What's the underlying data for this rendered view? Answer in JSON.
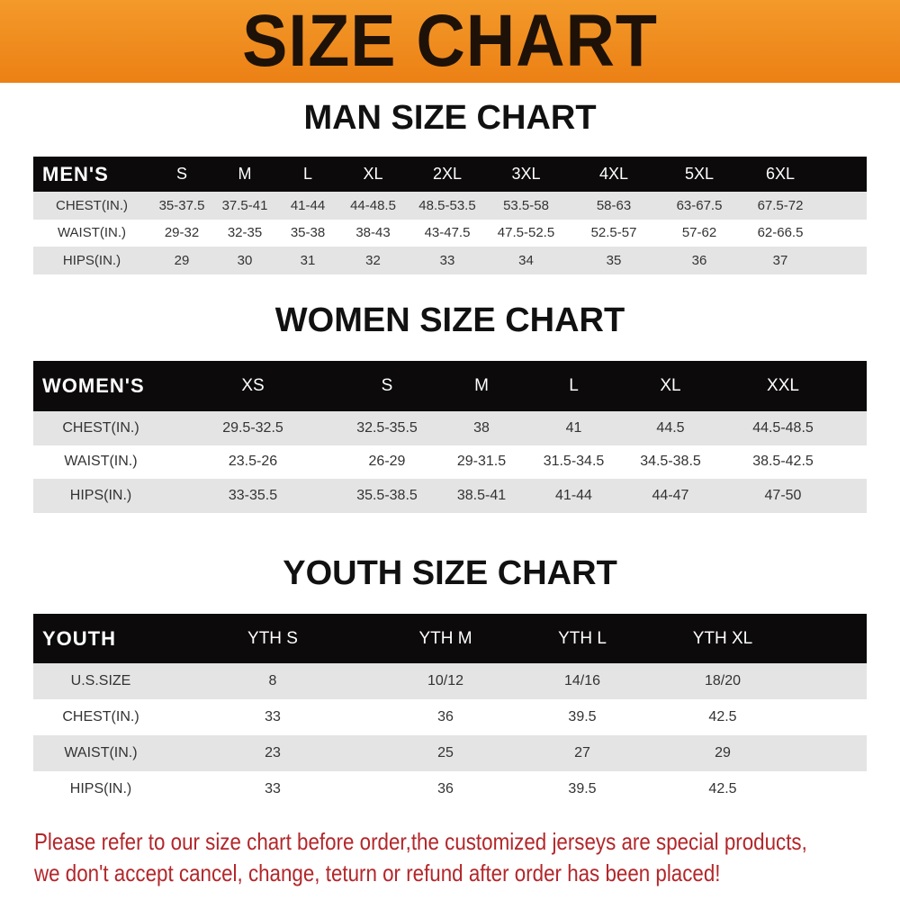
{
  "title": "SIZE CHART",
  "men": {
    "title": "MAN SIZE CHART",
    "headers": [
      "MEN'S",
      "S",
      "M",
      "L",
      "XL",
      "2XL",
      "3XL",
      "4XL",
      "5XL",
      "6XL"
    ],
    "rows": [
      [
        "CHEST(IN.)",
        "35-37.5",
        "37.5-41",
        "41-44",
        "44-48.5",
        "48.5-53.5",
        "53.5-58",
        "58-63",
        "63-67.5",
        "67.5-72"
      ],
      [
        "WAIST(IN.)",
        "29-32",
        "32-35",
        "35-38",
        "38-43",
        "43-47.5",
        "47.5-52.5",
        "52.5-57",
        "57-62",
        "62-66.5"
      ],
      [
        "HIPS(IN.)",
        "29",
        "30",
        "31",
        "32",
        "33",
        "34",
        "35",
        "36",
        "37"
      ]
    ]
  },
  "women": {
    "title": "WOMEN SIZE CHART",
    "headers": [
      "WOMEN'S",
      "XS",
      "S",
      "M",
      "L",
      "XL",
      "XXL"
    ],
    "rows": [
      [
        "CHEST(IN.)",
        "29.5-32.5",
        "32.5-35.5",
        "38",
        "41",
        "44.5",
        "44.5-48.5"
      ],
      [
        "WAIST(IN.)",
        "23.5-26",
        "26-29",
        "29-31.5",
        "31.5-34.5",
        "34.5-38.5",
        "38.5-42.5"
      ],
      [
        "HIPS(IN.)",
        "33-35.5",
        "35.5-38.5",
        "38.5-41",
        "41-44",
        "44-47",
        "47-50"
      ]
    ]
  },
  "youth": {
    "title": "YOUTH SIZE CHART",
    "headers": [
      "YOUTH",
      "YTH S",
      "YTH M",
      "YTH L",
      "YTH XL"
    ],
    "rows": [
      [
        "U.S.SIZE",
        "8",
        "10/12",
        "14/16",
        "18/20"
      ],
      [
        "CHEST(IN.)",
        "33",
        "36",
        "39.5",
        "42.5"
      ],
      [
        "WAIST(IN.)",
        "23",
        "25",
        "27",
        "29"
      ],
      [
        "HIPS(IN.)",
        "33",
        "36",
        "39.5",
        "42.5"
      ]
    ]
  },
  "notice": {
    "line1": "Please refer to our size chart before order,the customized jerseys are special products,",
    "line2": "we don't accept cancel, change, teturn or refund after order has been placed!"
  },
  "colors": {
    "banner": "#ec8015",
    "header_row": "#0c0a0a",
    "notice": "#b3262a"
  }
}
